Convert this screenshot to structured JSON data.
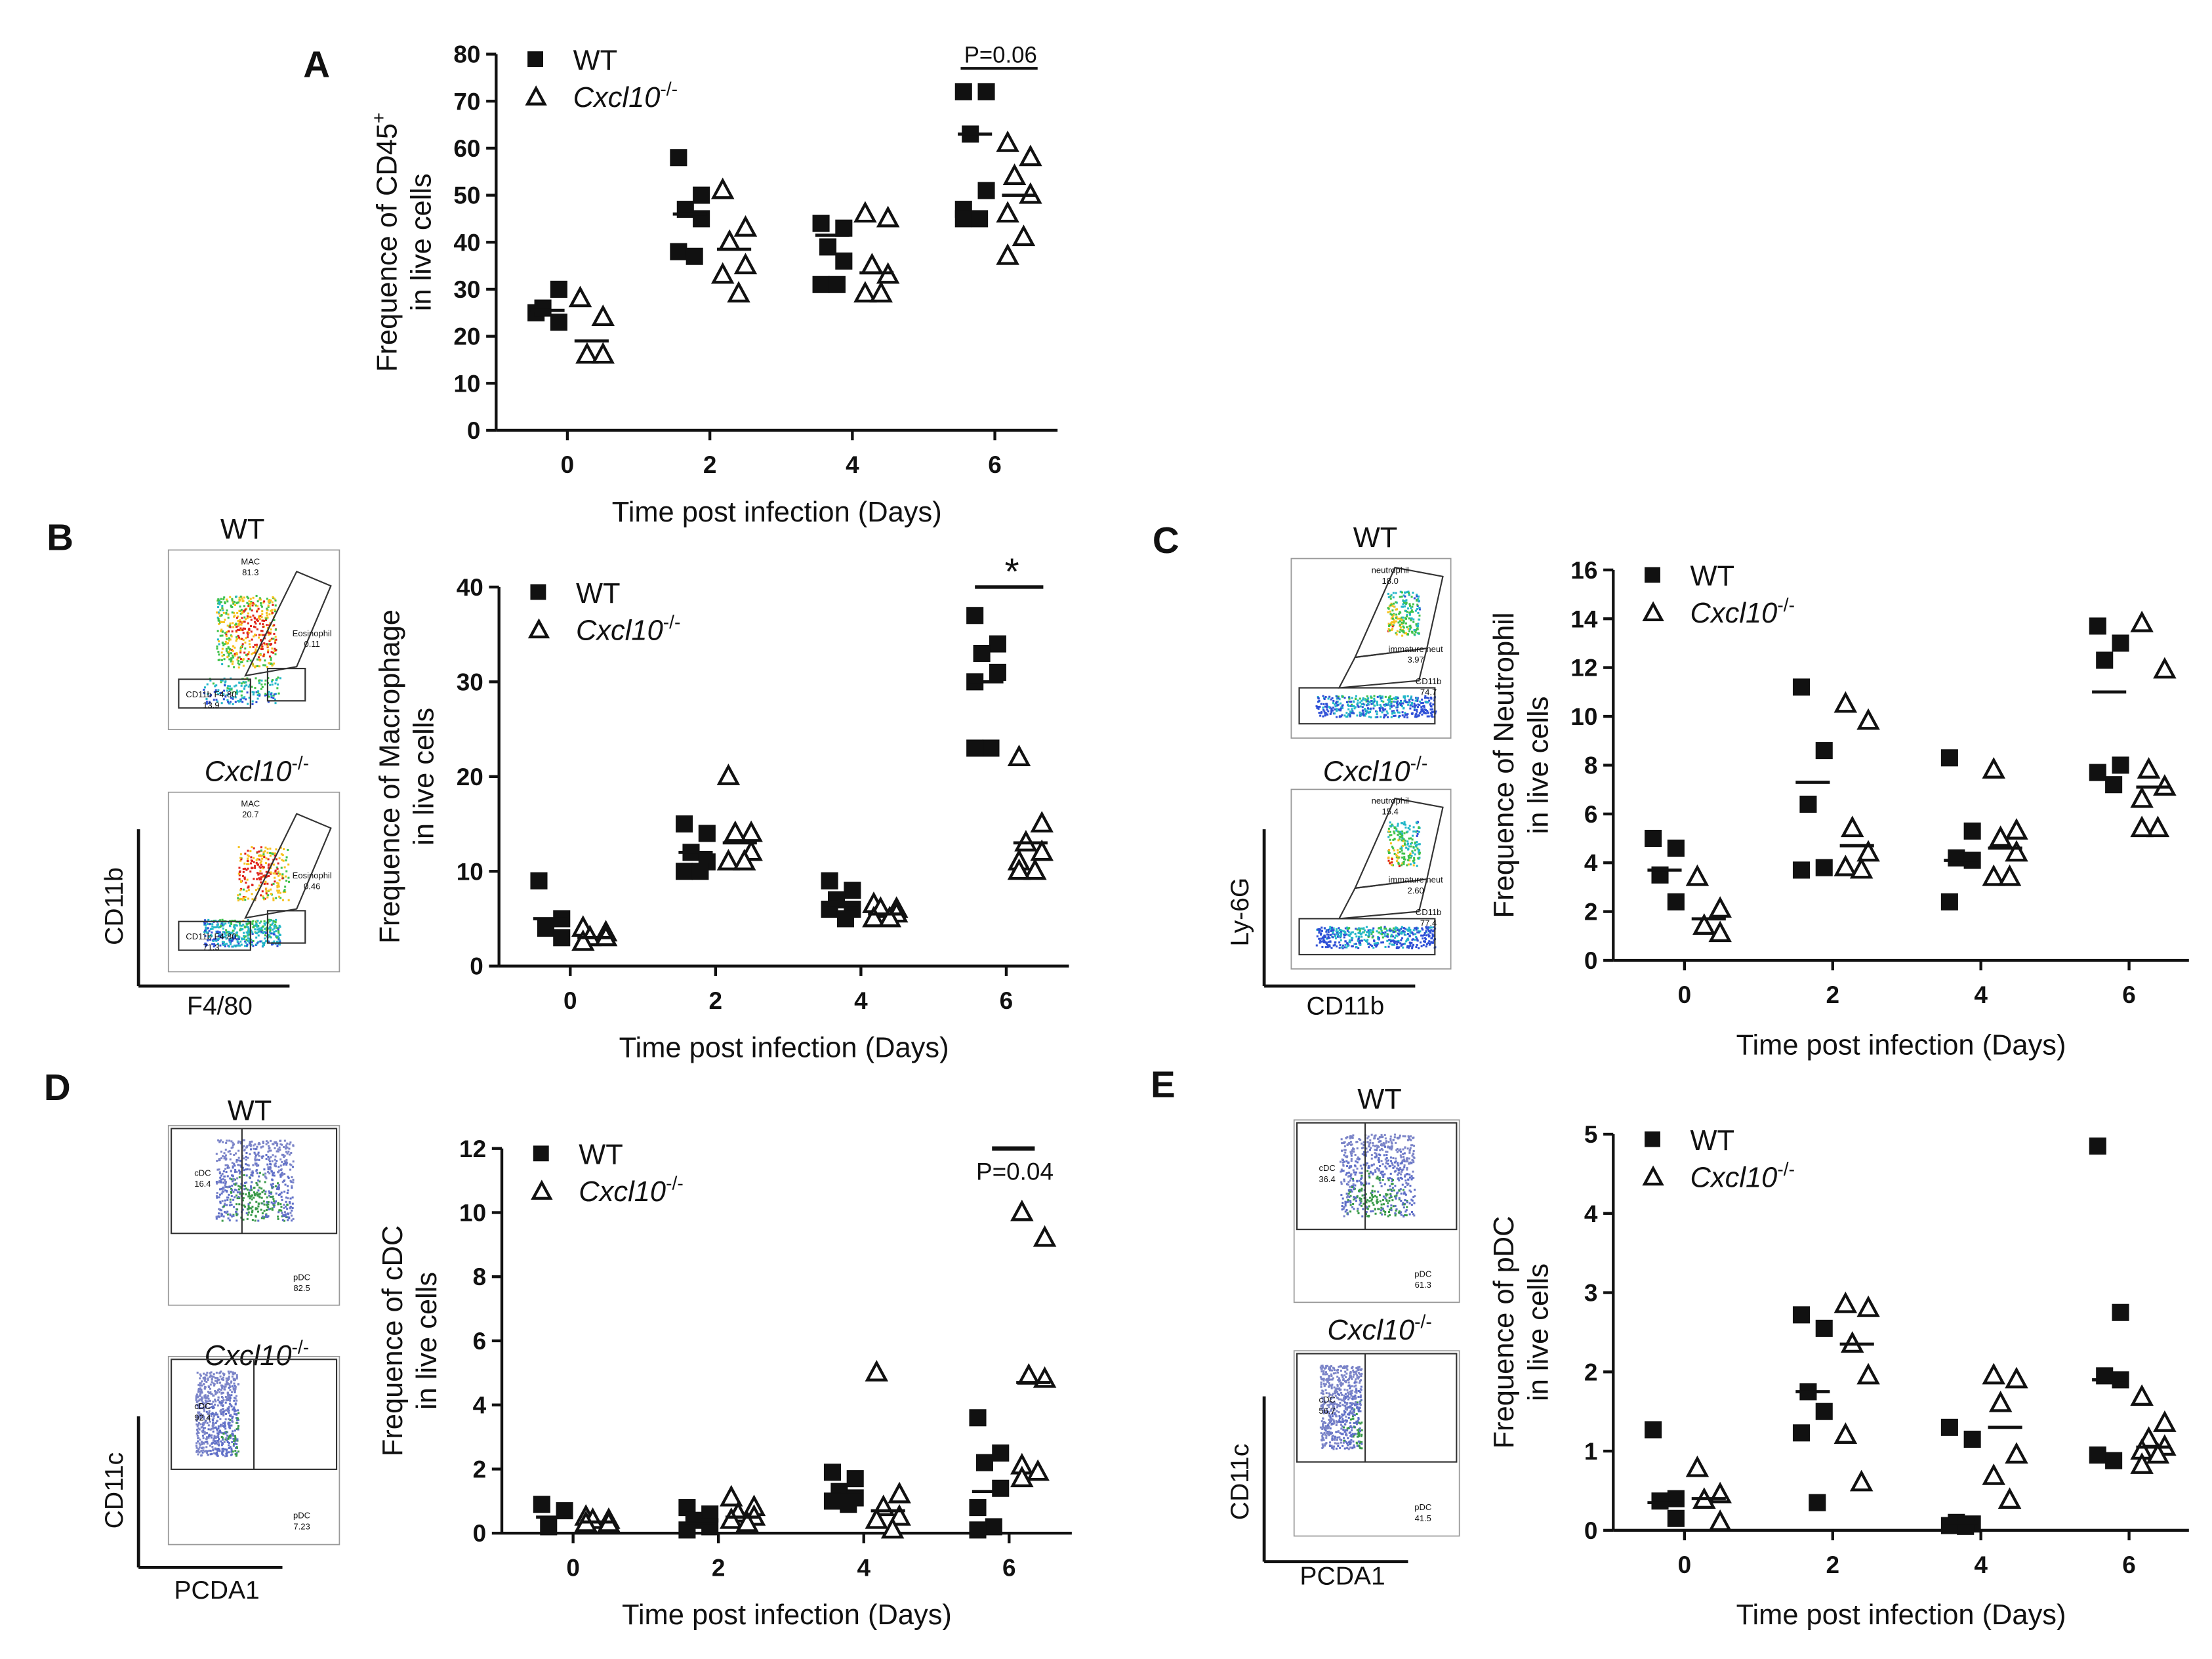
{
  "figure": {
    "time_axis_label": "Time post infection (Days)",
    "legend": {
      "wt": "WT",
      "ko": "Cxcl10",
      "ko_sup": "-/-"
    }
  },
  "chart_data": [
    {
      "panel": "A",
      "type": "scatter",
      "ylabel_line1": "Frequence of CD45",
      "ylabel_sup": "+",
      "ylabel_line2": "in live cells",
      "xlabel": "Time post infection (Days)",
      "categories": [
        "0",
        "2",
        "4",
        "6"
      ],
      "yticks": [
        "0",
        "10",
        "20",
        "30",
        "40",
        "50",
        "60",
        "70",
        "80"
      ],
      "ylim": [
        0,
        80
      ],
      "annotation": {
        "text": "P=0.06",
        "day_index": 3
      },
      "series": [
        {
          "name": "WT",
          "marker": "square",
          "points": [
            [
              25,
              30,
              26,
              23
            ],
            [
              58,
              50,
              47,
              45,
              38,
              37
            ],
            [
              44,
              43,
              39,
              36,
              31,
              31
            ],
            [
              72,
              72,
              63,
              51,
              47,
              45,
              45
            ]
          ],
          "means": [
            25.5,
            46,
            41.5,
            63
          ]
        },
        {
          "name": "Cxcl10-/-",
          "marker": "triangle",
          "points": [
            [
              28,
              24,
              16,
              16
            ],
            [
              51,
              43,
              40,
              35,
              33,
              29
            ],
            [
              46,
              45,
              35,
              33,
              29,
              29
            ],
            [
              61,
              58,
              54,
              50,
              46,
              41,
              37
            ]
          ],
          "means": [
            19,
            38.5,
            33.5,
            50
          ]
        }
      ]
    },
    {
      "panel": "B",
      "type": "scatter",
      "ylabel_line1": "Frequence of Macrophage",
      "ylabel_line2": "in live cells",
      "xlabel": "Time post infection (Days)",
      "categories": [
        "0",
        "2",
        "4",
        "6"
      ],
      "yticks": [
        "0",
        "10",
        "20",
        "30",
        "40"
      ],
      "ylim": [
        0,
        40
      ],
      "annotation": {
        "text": "*",
        "day_index": 3
      },
      "series": [
        {
          "name": "WT",
          "marker": "square",
          "points": [
            [
              9,
              5,
              4,
              3
            ],
            [
              15,
              14,
              12,
              11,
              10,
              10
            ],
            [
              9,
              8,
              7,
              6,
              6,
              5
            ],
            [
              37,
              34,
              33,
              31,
              30,
              23,
              23
            ]
          ],
          "means": [
            5,
            12,
            6.5,
            30
          ]
        },
        {
          "name": "Cxcl10-/-",
          "marker": "triangle",
          "points": [
            [
              4,
              3.5,
              3,
              3,
              2.5
            ],
            [
              20,
              14,
              14,
              12,
              11,
              11
            ],
            [
              6.5,
              6,
              6,
              5.5,
              5,
              5
            ],
            [
              22,
              15,
              13,
              12,
              11,
              10,
              10
            ]
          ],
          "means": [
            3,
            13,
            5.5,
            13
          ]
        }
      ]
    },
    {
      "panel": "C",
      "type": "scatter",
      "ylabel_line1": "Frequence of Neutrophil",
      "ylabel_line2": "in live cells",
      "xlabel": "Time post infection (Days)",
      "categories": [
        "0",
        "2",
        "4",
        "6"
      ],
      "yticks": [
        "0",
        "2",
        "4",
        "6",
        "8",
        "10",
        "12",
        "14",
        "16"
      ],
      "ylim": [
        0,
        16
      ],
      "series": [
        {
          "name": "WT",
          "marker": "square",
          "points": [
            [
              5.0,
              4.6,
              3.5,
              2.4
            ],
            [
              11.2,
              8.6,
              6.4,
              3.8,
              3.7
            ],
            [
              8.3,
              5.3,
              4.2,
              4.1,
              2.4
            ],
            [
              13.7,
              13.0,
              12.3,
              8.0,
              7.7,
              7.2
            ]
          ],
          "means": [
            3.7,
            7.3,
            4.1,
            11.0
          ]
        },
        {
          "name": "Cxcl10-/-",
          "marker": "triangle",
          "points": [
            [
              3.4,
              2.1,
              1.4,
              1.1
            ],
            [
              10.5,
              9.8,
              5.4,
              4.4,
              3.8,
              3.7
            ],
            [
              7.8,
              5.3,
              5.0,
              4.4,
              3.4,
              3.4
            ],
            [
              13.8,
              11.9,
              7.8,
              7.1,
              6.6,
              5.4,
              5.4
            ]
          ],
          "means": [
            1.7,
            4.7,
            4.6,
            7.1
          ]
        }
      ]
    },
    {
      "panel": "D",
      "type": "scatter",
      "ylabel_line1": "Frequence of cDC",
      "ylabel_line2": "in live cells",
      "xlabel": "Time post infection (Days)",
      "categories": [
        "0",
        "2",
        "4",
        "6"
      ],
      "yticks": [
        "0",
        "2",
        "4",
        "6",
        "8",
        "10",
        "12"
      ],
      "ylim": [
        0,
        12
      ],
      "annotation": {
        "text": "P=0.04",
        "day_index": 3
      },
      "series": [
        {
          "name": "WT",
          "marker": "square",
          "points": [
            [
              0.9,
              0.7,
              0.2
            ],
            [
              0.8,
              0.6,
              0.4,
              0.2,
              0.1
            ],
            [
              1.9,
              1.7,
              1.3,
              1.1,
              1.0,
              0.9
            ],
            [
              3.6,
              2.5,
              2.2,
              1.4,
              0.8,
              0.2,
              0.1
            ]
          ],
          "means": [
            0.5,
            0.3,
            1.2,
            1.3
          ]
        },
        {
          "name": "Cxcl10-/-",
          "marker": "triangle",
          "points": [
            [
              0.5,
              0.4,
              0.4,
              0.3,
              0.3
            ],
            [
              1.1,
              0.8,
              0.6,
              0.5,
              0.4,
              0.3
            ],
            [
              5.0,
              1.2,
              0.8,
              0.5,
              0.4,
              0.1
            ],
            [
              10.0,
              9.2,
              4.9,
              4.8,
              2.1,
              1.9,
              1.7
            ]
          ],
          "means": [
            0.35,
            0.5,
            0.7,
            4.7
          ]
        }
      ]
    },
    {
      "panel": "E",
      "type": "scatter",
      "ylabel_line1": "Frequence of pDC",
      "ylabel_line2": "in live cells",
      "xlabel": "Time post infection (Days)",
      "categories": [
        "0",
        "2",
        "4",
        "6"
      ],
      "yticks": [
        "0",
        "1",
        "2",
        "3",
        "4",
        "5"
      ],
      "ylim": [
        0,
        5
      ],
      "series": [
        {
          "name": "WT",
          "marker": "square",
          "points": [
            [
              1.27,
              0.4,
              0.37,
              0.15
            ],
            [
              2.72,
              2.55,
              1.75,
              1.5,
              1.23,
              0.35
            ],
            [
              1.3,
              1.15,
              0.1,
              0.08,
              0.06,
              0.05
            ],
            [
              4.85,
              2.75,
              1.95,
              1.9,
              0.95,
              0.88
            ]
          ],
          "means": [
            0.35,
            1.75,
            0.1,
            1.9
          ]
        },
        {
          "name": "Cxcl10-/-",
          "marker": "triangle",
          "points": [
            [
              0.78,
              0.45,
              0.38,
              0.1
            ],
            [
              2.85,
              2.8,
              2.35,
              1.95,
              1.2,
              0.6
            ],
            [
              1.95,
              1.9,
              1.6,
              0.95,
              0.68,
              0.38
            ],
            [
              1.68,
              1.35,
              1.15,
              1.05,
              1.0,
              0.95,
              0.82
            ]
          ],
          "means": [
            0.4,
            2.35,
            1.3,
            1.05
          ]
        }
      ]
    }
  ],
  "flow_panels": [
    {
      "panel": "B",
      "x_axis": "F4/80",
      "y_axis": "CD11b",
      "plots": [
        {
          "genotype": "WT",
          "gates": [
            "MAC",
            "81.3",
            "Eosinophil",
            "0.11",
            "CD11b F4-80",
            "13.9"
          ]
        },
        {
          "genotype": "Cxcl10-/-",
          "gates": [
            "MAC",
            "20.7",
            "Eosinophil",
            "0.46",
            "CD11b F4-80",
            "71.3"
          ]
        }
      ]
    },
    {
      "panel": "C",
      "x_axis": "CD11b",
      "y_axis": "Ly-6G",
      "plots": [
        {
          "genotype": "WT",
          "gates": [
            "neutrophil",
            "18.0",
            "immature neut",
            "3.97",
            "CD11b",
            "74.7"
          ]
        },
        {
          "genotype": "Cxcl10-/-",
          "gates": [
            "neutrophil",
            "15.4",
            "immature neut",
            "2.60",
            "CD11b",
            "77.4"
          ]
        }
      ]
    },
    {
      "panel": "D",
      "x_axis": "PCDA1",
      "y_axis": "CD11c",
      "plots": [
        {
          "genotype": "WT",
          "gates": [
            "cDC",
            "16.4",
            "pDC",
            "82.5"
          ]
        },
        {
          "genotype": "Cxcl10-/-",
          "gates": [
            "cDC",
            "92.4",
            "pDC",
            "7.23"
          ]
        }
      ]
    },
    {
      "panel": "E",
      "x_axis": "PCDA1",
      "y_axis": "CD11c",
      "plots": [
        {
          "genotype": "WT",
          "gates": [
            "cDC",
            "36.4",
            "pDC",
            "61.3"
          ]
        },
        {
          "genotype": "Cxcl10-/-",
          "gates": [
            "cDC",
            "56.7",
            "pDC",
            "41.5"
          ]
        }
      ]
    }
  ]
}
